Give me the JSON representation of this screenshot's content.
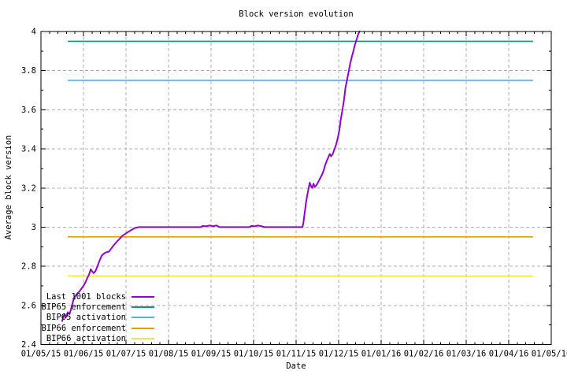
{
  "chart_data": {
    "type": "line",
    "title": "Block version evolution",
    "xlabel": "Date",
    "ylabel": "Average block version",
    "grid": true,
    "legend_position": "bottom-left",
    "x_unit": "months since 2015-05-01",
    "xlim": [
      0,
      12
    ],
    "ylim": [
      2.4,
      4
    ],
    "x_ticks": [
      {
        "month": 0,
        "label": "01/05/15"
      },
      {
        "month": 1,
        "label": "01/06/15"
      },
      {
        "month": 2,
        "label": "01/07/15"
      },
      {
        "month": 3,
        "label": "01/08/15"
      },
      {
        "month": 4,
        "label": "01/09/15"
      },
      {
        "month": 5,
        "label": "01/10/15"
      },
      {
        "month": 6,
        "label": "01/11/15"
      },
      {
        "month": 7,
        "label": "01/12/15"
      },
      {
        "month": 8,
        "label": "01/01/16"
      },
      {
        "month": 9,
        "label": "01/02/16"
      },
      {
        "month": 10,
        "label": "01/03/16"
      },
      {
        "month": 11,
        "label": "01/04/16"
      },
      {
        "month": 12,
        "label": "01/05/16"
      }
    ],
    "y_ticks": [
      {
        "value": 2.4,
        "label": "2.4"
      },
      {
        "value": 2.6,
        "label": "2.6"
      },
      {
        "value": 2.8,
        "label": "2.8"
      },
      {
        "value": 3.0,
        "label": "3"
      },
      {
        "value": 3.2,
        "label": "3.2"
      },
      {
        "value": 3.4,
        "label": "3.4"
      },
      {
        "value": 3.6,
        "label": "3.6"
      },
      {
        "value": 3.8,
        "label": "3.8"
      },
      {
        "value": 4.0,
        "label": "4"
      }
    ],
    "colors": {
      "grid": "#b0b0b0",
      "axis": "#000000",
      "background": "#ffffff"
    },
    "series": [
      {
        "name": "Last 1001 blocks",
        "color": "#9400D3",
        "kind": "curve",
        "points": [
          [
            0.5,
            2.52
          ],
          [
            0.53,
            2.545
          ],
          [
            0.56,
            2.555
          ],
          [
            0.59,
            2.54
          ],
          [
            0.63,
            2.565
          ],
          [
            0.67,
            2.555
          ],
          [
            0.7,
            2.575
          ],
          [
            0.73,
            2.6
          ],
          [
            0.76,
            2.625
          ],
          [
            0.8,
            2.645
          ],
          [
            0.85,
            2.66
          ],
          [
            0.9,
            2.67
          ],
          [
            0.95,
            2.685
          ],
          [
            1.0,
            2.7
          ],
          [
            1.05,
            2.72
          ],
          [
            1.09,
            2.74
          ],
          [
            1.13,
            2.757
          ],
          [
            1.17,
            2.785
          ],
          [
            1.2,
            2.775
          ],
          [
            1.24,
            2.765
          ],
          [
            1.28,
            2.775
          ],
          [
            1.33,
            2.8
          ],
          [
            1.37,
            2.825
          ],
          [
            1.43,
            2.855
          ],
          [
            1.48,
            2.865
          ],
          [
            1.54,
            2.872
          ],
          [
            1.6,
            2.875
          ],
          [
            1.65,
            2.89
          ],
          [
            1.72,
            2.91
          ],
          [
            1.78,
            2.925
          ],
          [
            1.85,
            2.94
          ],
          [
            1.91,
            2.955
          ],
          [
            1.98,
            2.965
          ],
          [
            2.05,
            2.975
          ],
          [
            2.12,
            2.985
          ],
          [
            2.2,
            2.995
          ],
          [
            2.3,
            3.0
          ],
          [
            3.76,
            3.0
          ],
          [
            3.8,
            3.006
          ],
          [
            3.88,
            3.004
          ],
          [
            3.96,
            3.008
          ],
          [
            4.05,
            3.005
          ],
          [
            4.13,
            3.008
          ],
          [
            4.2,
            3.0
          ],
          [
            4.9,
            3.0
          ],
          [
            4.95,
            3.006
          ],
          [
            5.03,
            3.004
          ],
          [
            5.1,
            3.008
          ],
          [
            5.18,
            3.005
          ],
          [
            5.26,
            3.0
          ],
          [
            6.15,
            3.0
          ],
          [
            6.17,
            3.02
          ],
          [
            6.2,
            3.07
          ],
          [
            6.23,
            3.12
          ],
          [
            6.26,
            3.16
          ],
          [
            6.29,
            3.195
          ],
          [
            6.32,
            3.227
          ],
          [
            6.35,
            3.21
          ],
          [
            6.38,
            3.2
          ],
          [
            6.41,
            3.222
          ],
          [
            6.44,
            3.205
          ],
          [
            6.47,
            3.213
          ],
          [
            6.5,
            3.222
          ],
          [
            6.53,
            3.235
          ],
          [
            6.57,
            3.252
          ],
          [
            6.61,
            3.268
          ],
          [
            6.65,
            3.29
          ],
          [
            6.68,
            3.315
          ],
          [
            6.72,
            3.338
          ],
          [
            6.76,
            3.358
          ],
          [
            6.79,
            3.374
          ],
          [
            6.82,
            3.362
          ],
          [
            6.86,
            3.373
          ],
          [
            6.9,
            3.397
          ],
          [
            6.94,
            3.422
          ],
          [
            6.98,
            3.455
          ],
          [
            7.02,
            3.5
          ],
          [
            7.05,
            3.55
          ],
          [
            7.09,
            3.6
          ],
          [
            7.13,
            3.655
          ],
          [
            7.16,
            3.71
          ],
          [
            7.2,
            3.755
          ],
          [
            7.24,
            3.8
          ],
          [
            7.27,
            3.835
          ],
          [
            7.31,
            3.87
          ],
          [
            7.35,
            3.902
          ],
          [
            7.38,
            3.93
          ],
          [
            7.42,
            3.957
          ],
          [
            7.45,
            3.98
          ],
          [
            7.49,
            4.0
          ]
        ]
      },
      {
        "name": "BIP65 enforcement",
        "color": "#009E73",
        "kind": "hline",
        "value": 3.95,
        "span": [
          0.63,
          11.57
        ]
      },
      {
        "name": "BIP65 activation",
        "color": "#56B4E9",
        "kind": "hline",
        "value": 3.75,
        "span": [
          0.63,
          11.57
        ]
      },
      {
        "name": "BIP66 enforcement",
        "color": "#E69F00",
        "kind": "hline",
        "value": 2.95,
        "span": [
          0.63,
          11.57
        ]
      },
      {
        "name": "BIP66 activation",
        "color": "#F0E442",
        "kind": "hline",
        "value": 2.75,
        "span": [
          0.63,
          11.57
        ]
      }
    ]
  }
}
